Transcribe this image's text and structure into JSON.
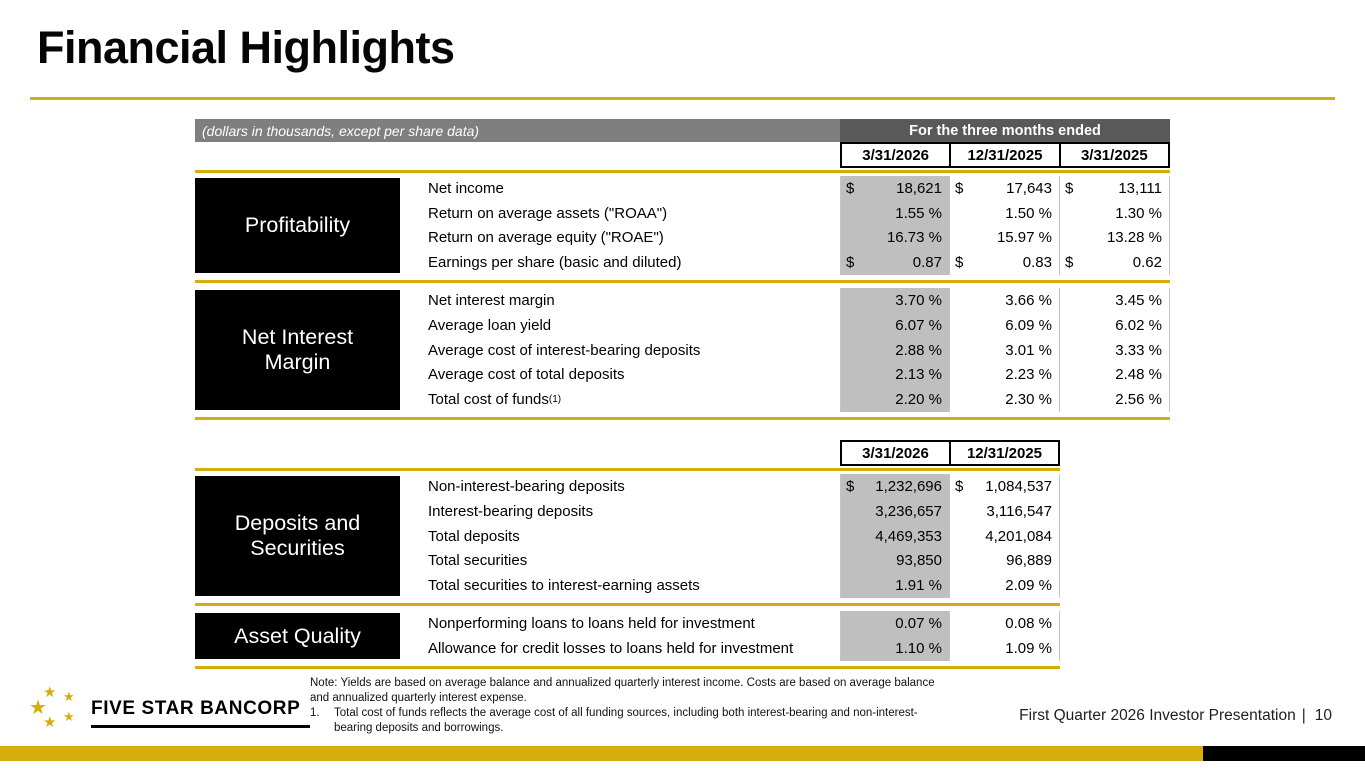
{
  "slide": {
    "title": "Financial Highlights",
    "colors": {
      "gold": "#D6AD0E",
      "column_shade": "#BFBFBF",
      "band_gray": "#7F7F7F",
      "band_dark_gray": "#595959",
      "section_box": "#000000"
    }
  },
  "table1": {
    "units_label": "(dollars in thousands, except per share data)",
    "period_header": "For the three months ended",
    "columns": [
      "3/31/2026",
      "12/31/2025",
      "3/31/2025"
    ],
    "sections": [
      {
        "label": "Profitability",
        "rows": [
          {
            "label": "Net income",
            "cells": [
              {
                "p": "$",
                "v": "18,621"
              },
              {
                "p": "$",
                "v": "17,643"
              },
              {
                "p": "$",
                "v": "13,111"
              }
            ]
          },
          {
            "label": "Return on average assets (\"ROAA\")",
            "cells": [
              {
                "p": "",
                "v": "1.55 %"
              },
              {
                "p": "",
                "v": "1.50 %"
              },
              {
                "p": "",
                "v": "1.30 %"
              }
            ]
          },
          {
            "label": "Return on average equity (\"ROAE\")",
            "cells": [
              {
                "p": "",
                "v": "16.73 %"
              },
              {
                "p": "",
                "v": "15.97 %"
              },
              {
                "p": "",
                "v": "13.28 %"
              }
            ]
          },
          {
            "label": "Earnings per share (basic and diluted)",
            "cells": [
              {
                "p": "$",
                "v": "0.87"
              },
              {
                "p": "$",
                "v": "0.83"
              },
              {
                "p": "$",
                "v": "0.62"
              }
            ]
          }
        ]
      },
      {
        "label": "Net Interest Margin",
        "rows": [
          {
            "label": "Net interest margin",
            "cells": [
              {
                "p": "",
                "v": "3.70 %"
              },
              {
                "p": "",
                "v": "3.66 %"
              },
              {
                "p": "",
                "v": "3.45 %"
              }
            ]
          },
          {
            "label": "Average loan yield",
            "cells": [
              {
                "p": "",
                "v": "6.07 %"
              },
              {
                "p": "",
                "v": "6.09 %"
              },
              {
                "p": "",
                "v": "6.02 %"
              }
            ]
          },
          {
            "label": "Average cost of interest-bearing deposits",
            "cells": [
              {
                "p": "",
                "v": "2.88 %"
              },
              {
                "p": "",
                "v": "3.01 %"
              },
              {
                "p": "",
                "v": "3.33 %"
              }
            ]
          },
          {
            "label": "Average cost of total deposits",
            "cells": [
              {
                "p": "",
                "v": "2.13 %"
              },
              {
                "p": "",
                "v": "2.23 %"
              },
              {
                "p": "",
                "v": "2.48 %"
              }
            ]
          },
          {
            "label": "Total cost of funds",
            "sup": "(1)",
            "cells": [
              {
                "p": "",
                "v": "2.20 %"
              },
              {
                "p": "",
                "v": "2.30 %"
              },
              {
                "p": "",
                "v": "2.56 %"
              }
            ]
          }
        ]
      }
    ]
  },
  "table2": {
    "columns": [
      "3/31/2026",
      "12/31/2025"
    ],
    "sections": [
      {
        "label": "Deposits and Securities",
        "rows": [
          {
            "label": "Non-interest-bearing deposits",
            "cells": [
              {
                "p": "$",
                "v": "1,232,696"
              },
              {
                "p": "$",
                "v": "1,084,537"
              }
            ]
          },
          {
            "label": "Interest-bearing deposits",
            "cells": [
              {
                "p": "",
                "v": "3,236,657"
              },
              {
                "p": "",
                "v": "3,116,547"
              }
            ]
          },
          {
            "label": "Total deposits",
            "cells": [
              {
                "p": "",
                "v": "4,469,353"
              },
              {
                "p": "",
                "v": "4,201,084"
              }
            ]
          },
          {
            "label": "Total securities",
            "cells": [
              {
                "p": "",
                "v": "93,850"
              },
              {
                "p": "",
                "v": "96,889"
              }
            ]
          },
          {
            "label": "Total securities to interest-earning assets",
            "cells": [
              {
                "p": "",
                "v": "1.91 %"
              },
              {
                "p": "",
                "v": "2.09 %"
              }
            ]
          }
        ]
      },
      {
        "label": "Asset Quality",
        "rows": [
          {
            "label": "Nonperforming loans to loans held for investment",
            "cells": [
              {
                "p": "",
                "v": "0.07 %"
              },
              {
                "p": "",
                "v": "0.08 %"
              }
            ]
          },
          {
            "label": "Allowance for credit losses to loans held for investment",
            "cells": [
              {
                "p": "",
                "v": "1.10 %"
              },
              {
                "p": "",
                "v": "1.09 %"
              }
            ]
          }
        ]
      }
    ]
  },
  "footnotes": {
    "note": "Note: Yields are based on average balance and annualized quarterly interest income. Costs are based on average balance and annualized quarterly interest expense.",
    "item_number": "1.",
    "item_text": "Total cost of funds reflects the average cost of all funding sources, including both interest-bearing and non-interest- bearing deposits and borrowings."
  },
  "footer": {
    "logo_text": "FIVE STAR BANCORP",
    "star_glyph": "★",
    "presentation": "First Quarter 2026 Investor Presentation",
    "separator": "|",
    "page_number": "10"
  }
}
